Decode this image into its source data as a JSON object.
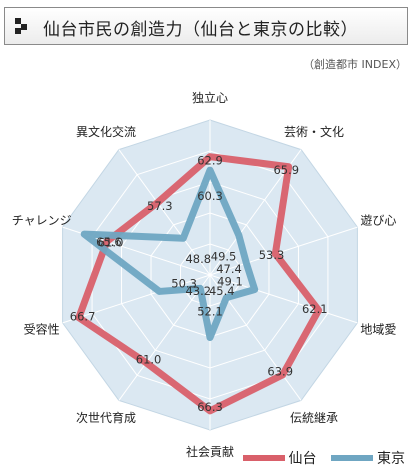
{
  "header": {
    "title": "仙台市民の創造力（仙台と東京の比較）"
  },
  "subtitle": "（創造都市 INDEX）",
  "chart_data": {
    "type": "radar",
    "axes": [
      "独立心",
      "芸術・文化",
      "遊び心",
      "地域愛",
      "伝統継承",
      "社会貢献",
      "次世代育成",
      "受容性",
      "チャレンジ",
      "異文化交流"
    ],
    "range": [
      40,
      70
    ],
    "grid": true,
    "legend_position": "bottom-right",
    "series": [
      {
        "name": "仙台",
        "color": "#d9606a",
        "values": [
          62.9,
          65.9,
          53.3,
          62.1,
          63.9,
          66.3,
          61.0,
          66.7,
          61.0,
          57.3
        ]
      },
      {
        "name": "東京",
        "color": "#6fa6c2",
        "values": [
          60.3,
          49.5,
          47.4,
          49.1,
          45.4,
          52.1,
          43.2,
          50.3,
          65.6,
          48.8
        ]
      }
    ]
  },
  "legend": {
    "items": [
      "仙台",
      "東京"
    ]
  }
}
